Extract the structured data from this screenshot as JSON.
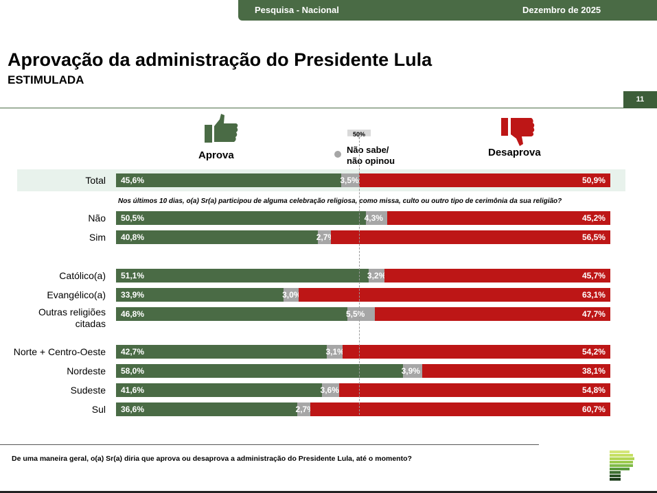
{
  "header": {
    "left": "Pesquisa - Nacional",
    "right": "Dezembro de 2025"
  },
  "title": "Aprovação da administração do Presidente Lula",
  "subtitle": "ESTIMULADA",
  "page": "11",
  "legend": {
    "approve": "Aprova",
    "dk": "Não sabe/\nnão opinou",
    "disapprove": "Desaprova",
    "marker": "50%"
  },
  "colors": {
    "approve": "#4a6b45",
    "dk": "#a6a6a6",
    "disapprove": "#bd1616"
  },
  "question_religion": "Nos últimos 10 dias, o(a) Sr(a) participou de alguma celebração religiosa, como missa, culto ou outro tipo de cerimônia da sua religião?",
  "footnote": "De uma maneira geral, o(a) Sr(a) diria que aprova ou desaprova a administração do Presidente Lula, até o momento?",
  "chart_data": {
    "type": "bar",
    "stacked": true,
    "orientation": "horizontal",
    "series_names": [
      "Aprova",
      "Não sabe/não opinou",
      "Desaprova"
    ],
    "categories": [
      "Total",
      "Não",
      "Sim",
      "Católico(a)",
      "Evangélico(a)",
      "Outras religiões citadas",
      "Norte + Centro-Oeste",
      "Nordeste",
      "Sudeste",
      "Sul"
    ],
    "labels": {
      "approve": [
        "45,6%",
        "50,5%",
        "40,8%",
        "51,1%",
        "33,9%",
        "46,8%",
        "42,7%",
        "58,0%",
        "41,6%",
        "36,6%"
      ],
      "dk": [
        "3,5%",
        "4,3%",
        "2,7%",
        "3,2%",
        "3,0%",
        "5,5%",
        "3,1%",
        "3,9%",
        "3,6%",
        "2,7%"
      ],
      "disapprove": [
        "50,9%",
        "45,2%",
        "56,5%",
        "45,7%",
        "63,1%",
        "47,7%",
        "54,2%",
        "38,1%",
        "54,8%",
        "60,7%"
      ]
    },
    "approve": [
      45.6,
      50.5,
      40.8,
      51.1,
      33.9,
      46.8,
      42.7,
      58.0,
      41.6,
      36.6
    ],
    "dk": [
      3.5,
      4.3,
      2.7,
      3.2,
      3.0,
      5.5,
      3.1,
      3.9,
      3.6,
      2.7
    ],
    "disapprove": [
      50.9,
      45.2,
      56.5,
      45.7,
      63.1,
      47.7,
      54.2,
      38.1,
      54.8,
      60.7
    ]
  }
}
